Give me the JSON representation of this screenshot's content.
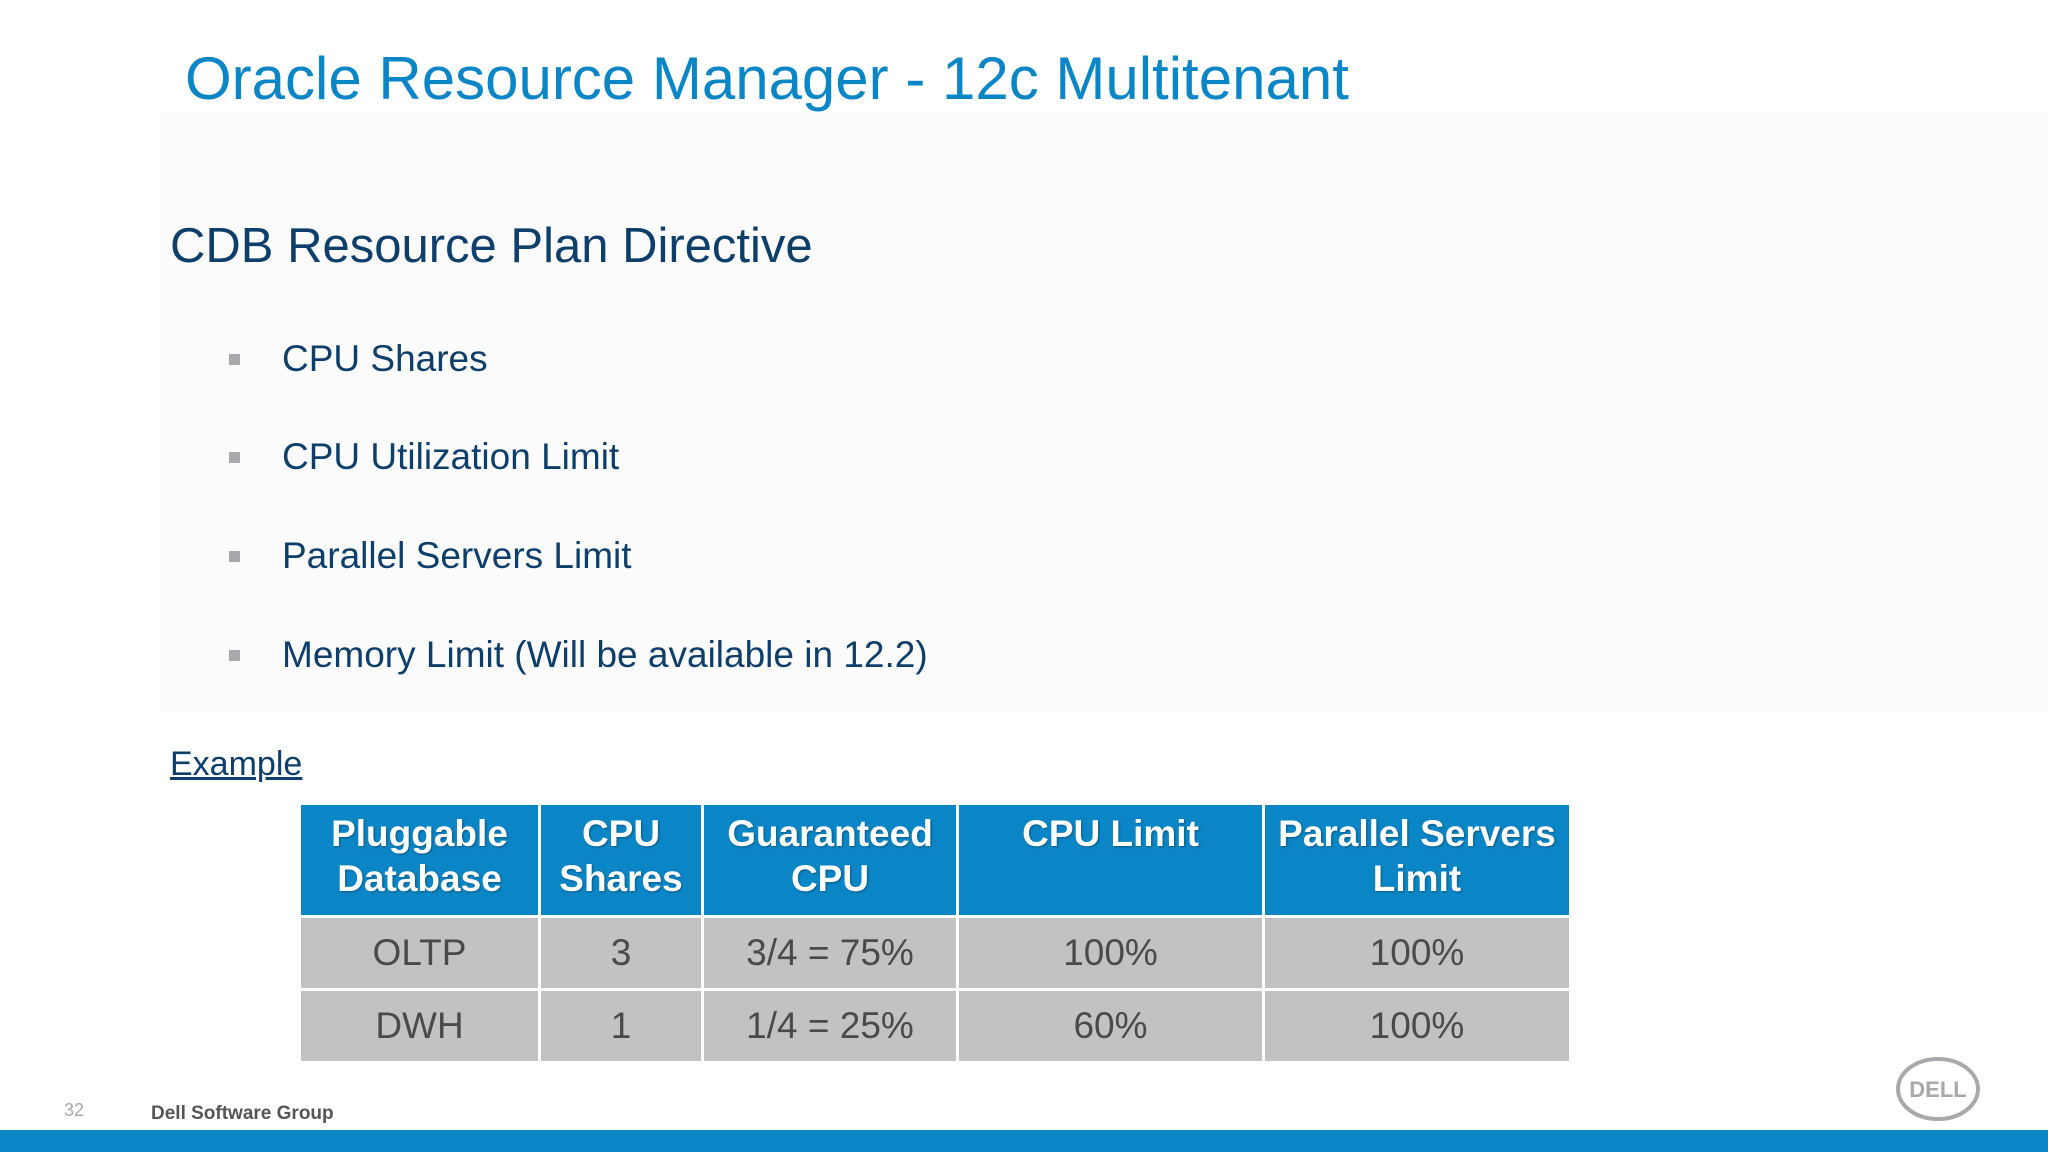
{
  "slide": {
    "title": "Oracle Resource Manager - 12c Multitenant",
    "subtitle": "CDB Resource Plan Directive",
    "bullets": [
      "CPU Shares",
      "CPU Utilization Limit",
      "Parallel Servers Limit",
      "Memory Limit (Will be available in 12.2)"
    ],
    "example_label": "Example"
  },
  "table": {
    "headers": [
      [
        "Pluggable",
        "Database"
      ],
      [
        "CPU",
        "Shares"
      ],
      [
        "Guaranteed",
        "CPU"
      ],
      [
        "CPU Limit",
        ""
      ],
      [
        "Parallel Servers",
        "Limit"
      ]
    ],
    "rows": [
      [
        "OLTP",
        "3",
        "3/4 = 75%",
        "100%",
        "100%"
      ],
      [
        "DWH",
        "1",
        "1/4 = 25%",
        "60%",
        "100%"
      ]
    ]
  },
  "footer": {
    "page_number": "32",
    "group": "Dell Software Group",
    "logo_text": "DELL",
    "logo_icon": "dell-logo-icon"
  },
  "colors": {
    "accent": "#0a86c6",
    "text_dark": "#0e3f6a",
    "table_cell": "#c3c2c3"
  }
}
